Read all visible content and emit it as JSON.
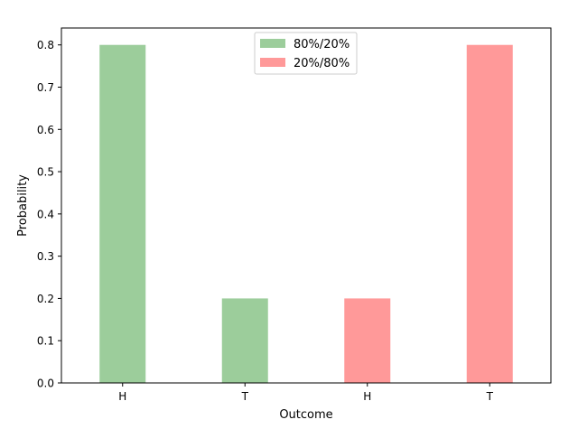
{
  "chart_data": {
    "type": "bar",
    "title": "",
    "xlabel": "Outcome",
    "ylabel": "Probability",
    "ylim": [
      0,
      0.84
    ],
    "yticks": [
      0.0,
      0.1,
      0.2,
      0.3,
      0.4,
      0.5,
      0.6,
      0.7,
      0.8
    ],
    "grid": false,
    "legend_position": "top-center",
    "bars": [
      {
        "category": "H",
        "value": 0.8,
        "series": "80%/20%"
      },
      {
        "category": "T",
        "value": 0.2,
        "series": "80%/20%"
      },
      {
        "category": "H",
        "value": 0.2,
        "series": "20%/80%"
      },
      {
        "category": "T",
        "value": 0.8,
        "series": "20%/80%"
      }
    ],
    "series": [
      {
        "name": "80%/20%",
        "color": "#9ccd9b"
      },
      {
        "name": "20%/80%",
        "color": "#ff9999"
      }
    ]
  }
}
